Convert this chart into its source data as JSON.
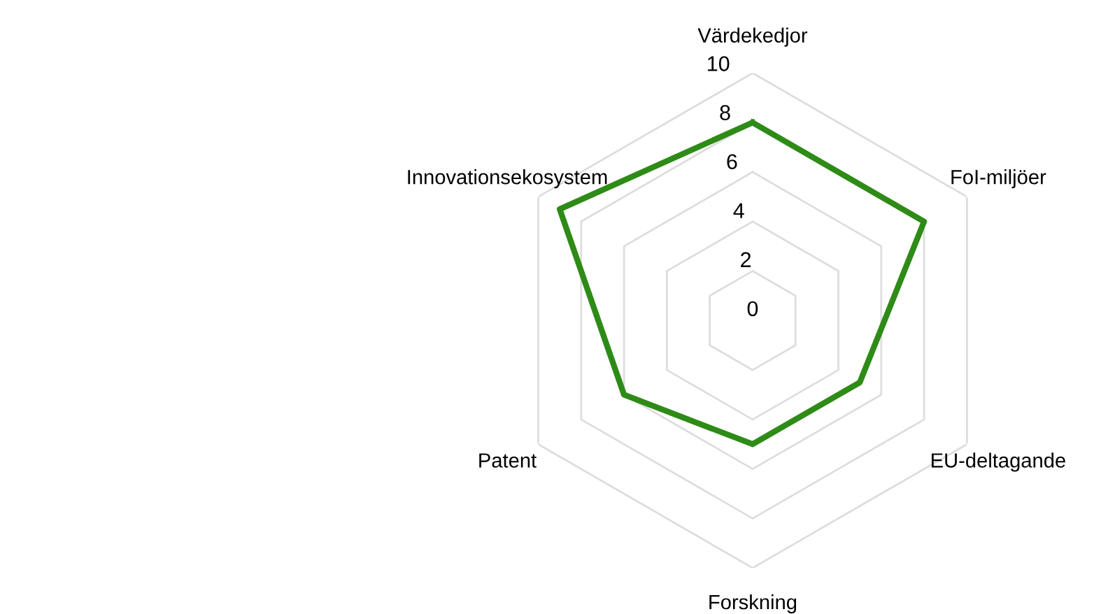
{
  "chart_data": {
    "type": "radar",
    "categories": [
      "Värdekedjor",
      "FoI-miljöer",
      "EU-deltagande",
      "Forskning",
      "Patent",
      "Innovationsekosystem"
    ],
    "series": [
      {
        "color": "#2e8b17",
        "values": [
          8,
          8,
          5,
          5,
          6,
          9
        ]
      }
    ],
    "ylim": [
      0,
      10
    ],
    "yticks": [
      0,
      2,
      4,
      6,
      8,
      10
    ],
    "grid": true
  }
}
